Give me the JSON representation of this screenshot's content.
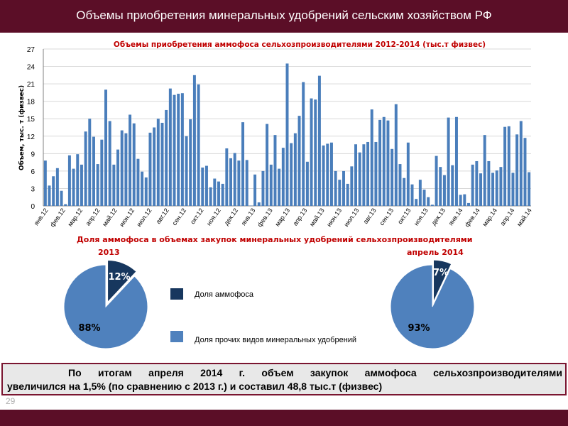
{
  "slide": {
    "title": "Объемы приобретения минеральных удобрений сельским хозяйством РФ",
    "page_number": "29",
    "summary_line1": "По итогам апреля 2014 г. объем закупок аммофоса сельхозпроизводителями",
    "summary_line2": "увеличился на 1,5% (по сравнению с 2013 г.) и составил 48,8 тыс.т (физвес)"
  },
  "colors": {
    "header": "#5b0e27",
    "bar": "#4a7ebb",
    "pie_main": "#4f81bd",
    "pie_slice": "#17375e",
    "title_red": "#c00000"
  },
  "chart_data": [
    {
      "type": "bar",
      "title": "Объемы приобретения аммофоса сельхозпроизводителями 2012-2014  (тыс.т физвес)",
      "ylabel": "Объем, тыс. т (физвес)",
      "xlabel": "",
      "ylim": [
        0,
        27
      ],
      "yticks": [
        0,
        3,
        6,
        9,
        12,
        15,
        18,
        21,
        24,
        27
      ],
      "grid": true,
      "x_tick_labels": [
        "янв.12",
        "фев.12",
        "мар.12",
        "апр.12",
        "май.12",
        "июн.12",
        "июл.12",
        "авг.12",
        "сен.12",
        "окт.12",
        "ноя.12",
        "дек.12",
        "янв.13",
        "фев.13",
        "мар.13",
        "апр.13",
        "май.13",
        "июн.13",
        "июл.13",
        "авг.13",
        "сен.13",
        "окт.13",
        "ноя.13",
        "дек.13",
        "янв.14",
        "фев.14",
        "мар.14",
        "апр.14",
        "май.14"
      ],
      "values": [
        7.8,
        3.5,
        5.1,
        6.5,
        2.6,
        0.3,
        8.7,
        6.4,
        8.9,
        7.1,
        12.8,
        15.0,
        11.9,
        7.2,
        11.4,
        20.0,
        14.6,
        7.1,
        9.7,
        13.0,
        12.5,
        15.7,
        14.2,
        8.1,
        5.9,
        4.9,
        12.6,
        13.5,
        15.0,
        14.3,
        16.5,
        20.2,
        19.1,
        19.3,
        19.4,
        12.0,
        14.9,
        22.5,
        20.9,
        6.6,
        6.9,
        3.2,
        4.7,
        4.2,
        3.8,
        9.9,
        8.2,
        9.1,
        7.8,
        14.4,
        7.9,
        0.05,
        5.4,
        0.6,
        6.0,
        14.1,
        7.1,
        12.2,
        6.4,
        10.0,
        24.5,
        10.8,
        12.5,
        15.5,
        21.3,
        7.6,
        18.5,
        18.3,
        22.4,
        10.4,
        10.7,
        10.9,
        6.0,
        4.5,
        6.0,
        3.8,
        6.8,
        10.6,
        9.2,
        10.6,
        11.0,
        16.6,
        11.0,
        14.8,
        15.3,
        14.7,
        9.8,
        17.5,
        7.2,
        4.8,
        10.9,
        3.7,
        1.2,
        4.5,
        2.8,
        1.5,
        0.2,
        8.6,
        6.7,
        5.3,
        15.2,
        7.0,
        15.3,
        1.9,
        2.0,
        0.5,
        7.1,
        7.7,
        5.6,
        12.2,
        7.7,
        5.7,
        6.1,
        6.7,
        13.6,
        13.7,
        5.7,
        12.3,
        14.6,
        11.7,
        5.8
      ]
    },
    {
      "type": "pie",
      "title_line1": "Доля  аммофоса в объемах закупок минеральных удобрений  сельхозпроизводителями",
      "title_line2": "2013",
      "values": [
        12,
        88
      ],
      "labels": [
        "12%",
        "88%"
      ]
    },
    {
      "type": "pie",
      "title_line2": "апрель 2014",
      "values": [
        7,
        93
      ],
      "labels": [
        "7%",
        "93%"
      ]
    }
  ],
  "legend": [
    {
      "label": "Доля аммофоса",
      "color": "#17375e"
    },
    {
      "label": "Доля прочих видов минеральных удобрений",
      "color": "#4f81bd"
    }
  ]
}
